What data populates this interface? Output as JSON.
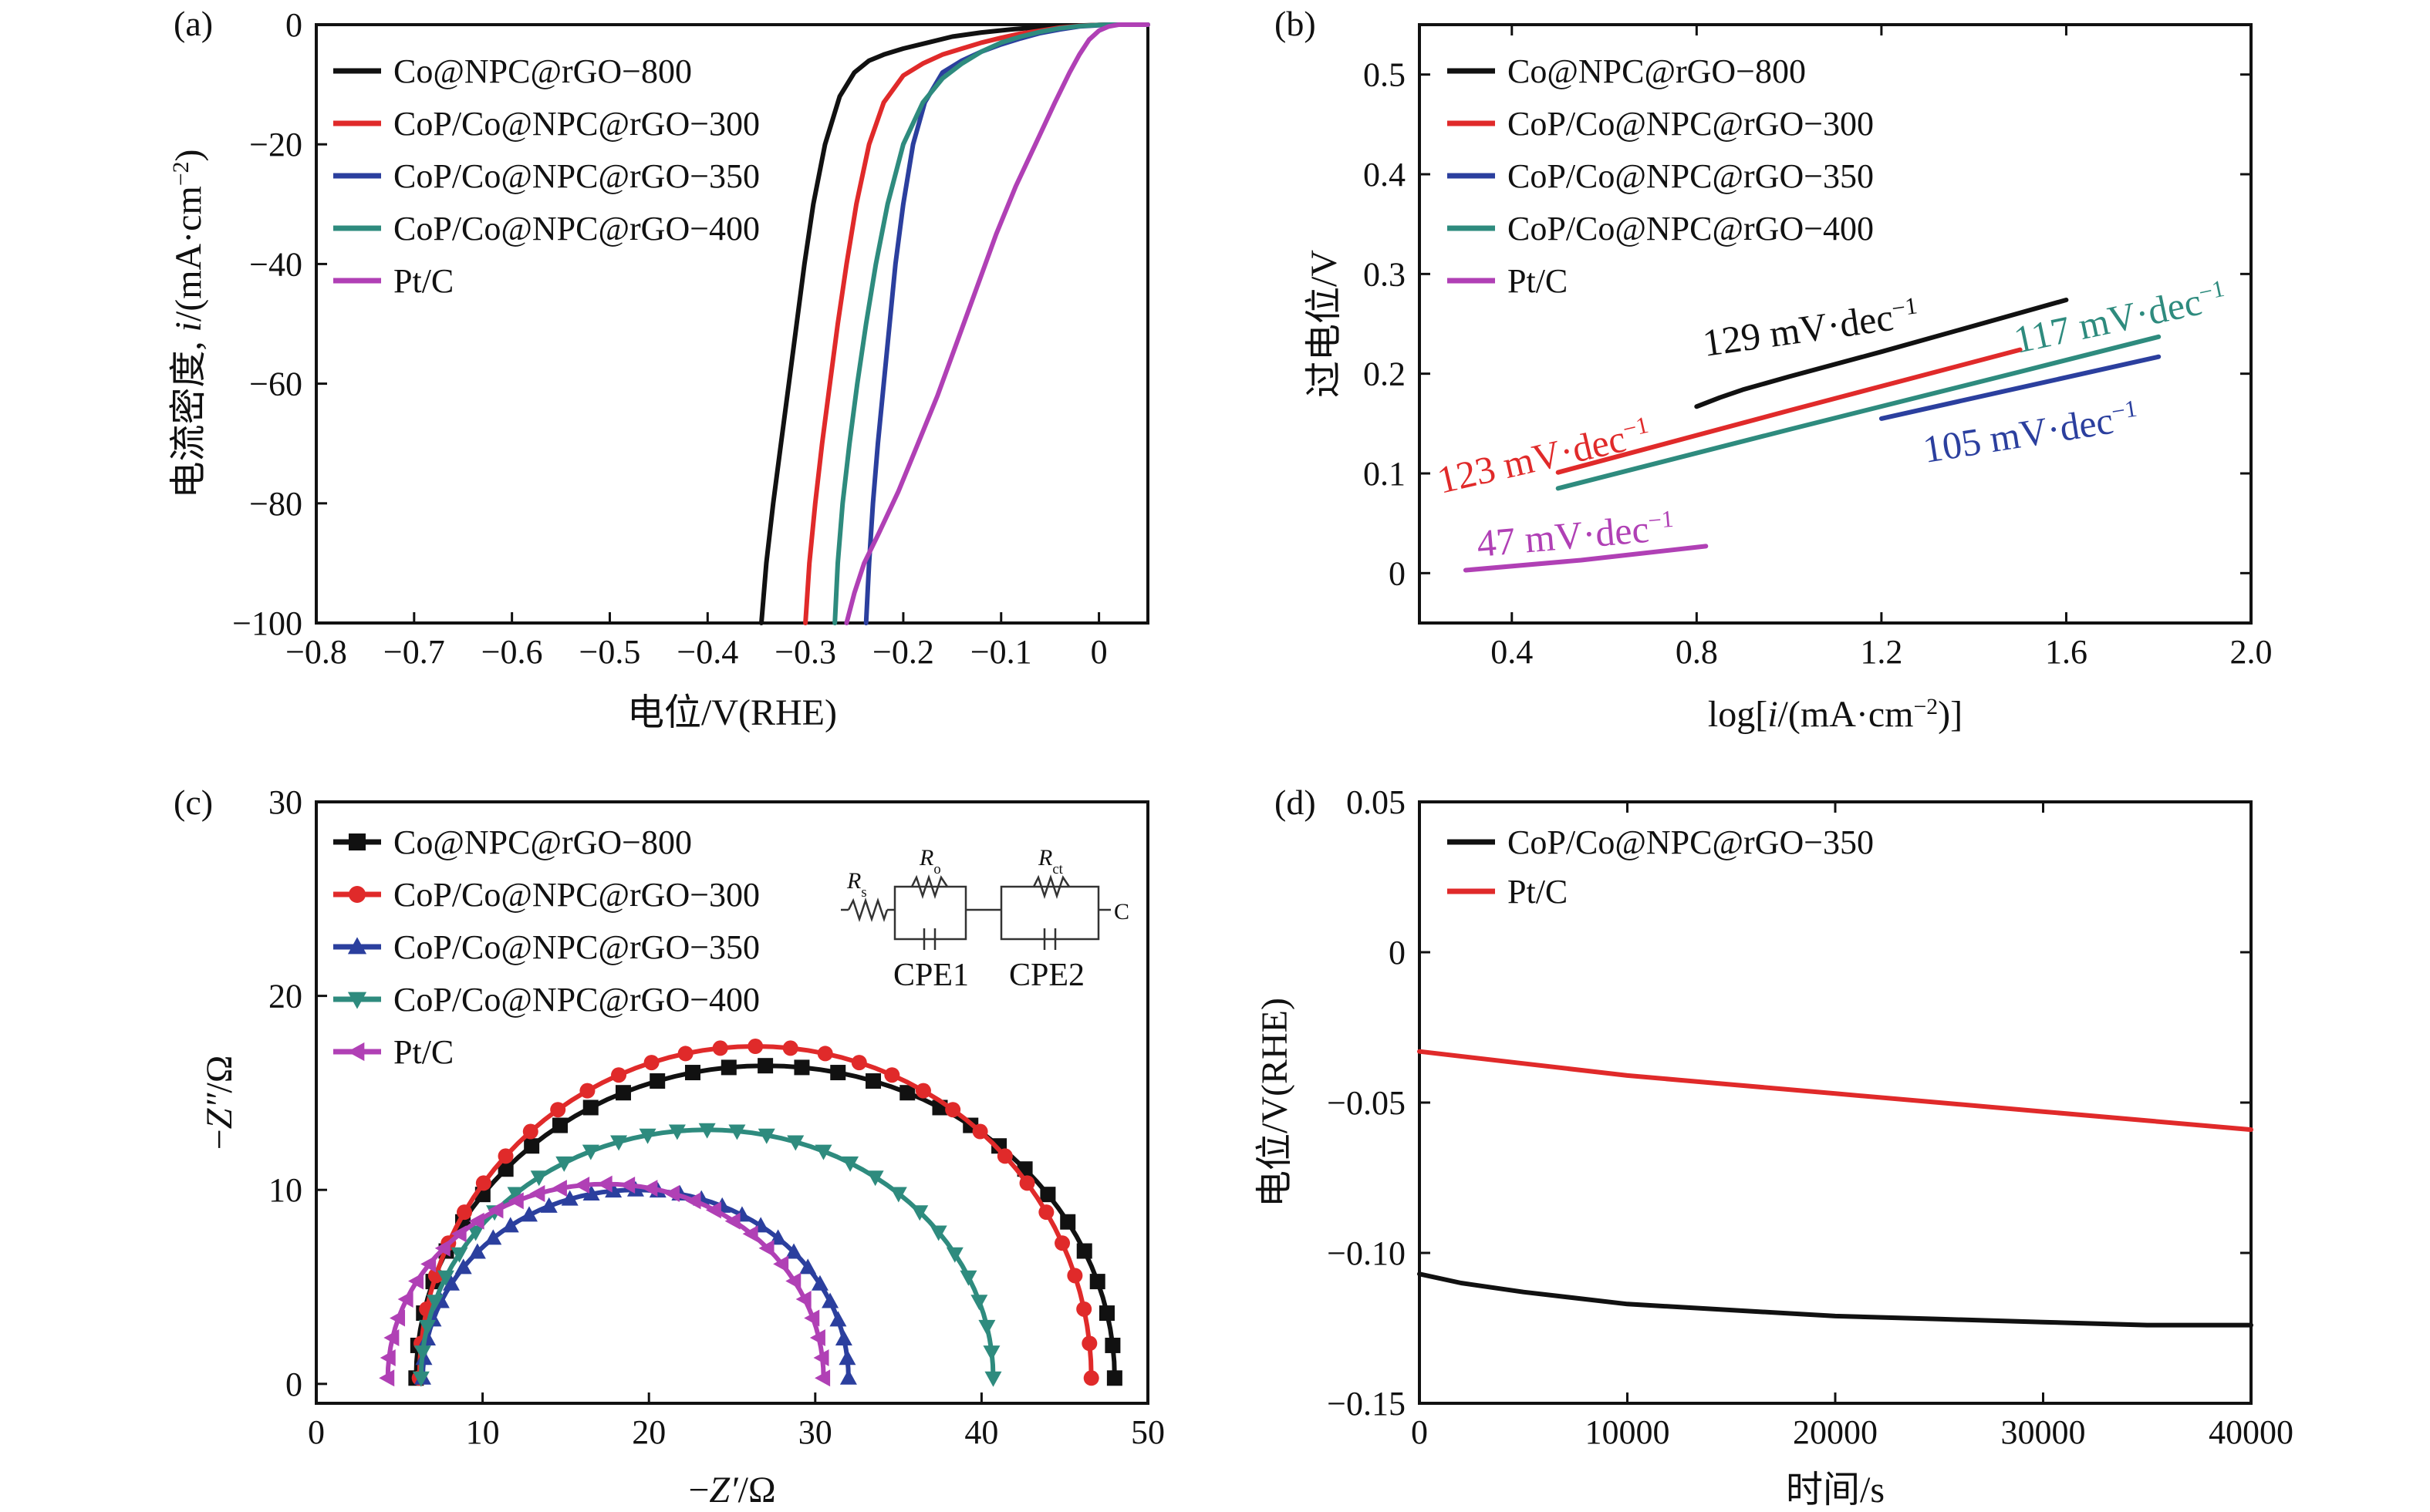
{
  "chart_data": [
    {
      "panel": "(a)",
      "type": "line",
      "xlabel": "电位/V(RHE)",
      "ylabel_prefix": "电流密度, ",
      "ylabel_var": "i",
      "ylabel_unit": "/(mA·cm",
      "ylabel_sup": "−2",
      "ylabel_end": ")",
      "xlim": [
        -0.8,
        0.05
      ],
      "ylim": [
        -100,
        0
      ],
      "xticks": [
        -0.8,
        -0.7,
        -0.6,
        -0.5,
        -0.4,
        -0.3,
        -0.2,
        -0.1,
        0
      ],
      "xtick_labels": [
        "−0.8",
        "−0.7",
        "−0.6",
        "−0.5",
        "−0.4",
        "−0.3",
        "−0.2",
        "−0.1",
        "0"
      ],
      "yticks": [
        0,
        -20,
        -40,
        -60,
        -80,
        -100
      ],
      "ytick_labels": [
        "0",
        "−20",
        "−40",
        "−60",
        "−80",
        "−100"
      ],
      "legend_position": "top-left",
      "series": [
        {
          "name": "Co@NPC@rGO−800",
          "color": "#111111",
          "x": [
            -0.345,
            -0.34,
            -0.333,
            -0.325,
            -0.317,
            -0.309,
            -0.301,
            -0.292,
            -0.28,
            -0.265,
            -0.25,
            -0.235,
            -0.22,
            -0.2,
            -0.175,
            -0.15,
            -0.12,
            -0.09,
            -0.06,
            -0.03,
            -0.01,
            0.0,
            0.01,
            0.02,
            0.05
          ],
          "y": [
            -100,
            -90,
            -80,
            -70,
            -60,
            -50,
            -40,
            -30,
            -20,
            -12,
            -8,
            -6,
            -5,
            -4,
            -3,
            -2,
            -1.3,
            -0.8,
            -0.4,
            -0.2,
            -0.1,
            -0.05,
            0,
            0,
            0
          ]
        },
        {
          "name": "CoP/Co@NPC@rGO−300",
          "color": "#e02a2a",
          "x": [
            -0.3,
            -0.296,
            -0.29,
            -0.283,
            -0.275,
            -0.267,
            -0.258,
            -0.248,
            -0.235,
            -0.22,
            -0.2,
            -0.18,
            -0.16,
            -0.14,
            -0.12,
            -0.1,
            -0.08,
            -0.06,
            -0.04,
            -0.02,
            0.0,
            0.01,
            0.05
          ],
          "y": [
            -100,
            -90,
            -80,
            -70,
            -60,
            -50,
            -40,
            -30,
            -20,
            -13,
            -8.5,
            -6.5,
            -5,
            -4,
            -3,
            -2.2,
            -1.5,
            -1,
            -0.5,
            -0.2,
            -0.05,
            0,
            0
          ]
        },
        {
          "name": "CoP/Co@NPC@rGO−350",
          "color": "#2b3f9e",
          "x": [
            -0.238,
            -0.235,
            -0.231,
            -0.226,
            -0.22,
            -0.214,
            -0.208,
            -0.2,
            -0.19,
            -0.178,
            -0.16,
            -0.14,
            -0.12,
            -0.1,
            -0.08,
            -0.06,
            -0.04,
            -0.02,
            0.0,
            0.01,
            0.05
          ],
          "y": [
            -100,
            -90,
            -80,
            -70,
            -60,
            -50,
            -40,
            -30,
            -20,
            -13,
            -8,
            -6,
            -4.5,
            -3.3,
            -2.3,
            -1.4,
            -0.8,
            -0.3,
            -0.1,
            0,
            0
          ]
        },
        {
          "name": "CoP/Co@NPC@rGO−400",
          "color": "#2e8b7e",
          "x": [
            -0.27,
            -0.267,
            -0.262,
            -0.255,
            -0.247,
            -0.238,
            -0.228,
            -0.216,
            -0.2,
            -0.18,
            -0.16,
            -0.14,
            -0.12,
            -0.1,
            -0.08,
            -0.06,
            -0.04,
            -0.02,
            0.0,
            0.01,
            0.05
          ],
          "y": [
            -100,
            -90,
            -80,
            -70,
            -60,
            -50,
            -40,
            -30,
            -20,
            -13,
            -9,
            -6.5,
            -4.5,
            -3,
            -2,
            -1.2,
            -0.6,
            -0.25,
            -0.05,
            0,
            0
          ]
        },
        {
          "name": "Pt/C",
          "color": "#b040b5",
          "x": [
            -0.258,
            -0.25,
            -0.24,
            -0.225,
            -0.205,
            -0.185,
            -0.165,
            -0.145,
            -0.125,
            -0.105,
            -0.085,
            -0.065,
            -0.045,
            -0.03,
            -0.02,
            -0.01,
            0.0,
            0.01,
            0.02,
            0.05
          ],
          "y": [
            -100,
            -95,
            -90,
            -85,
            -78,
            -70,
            -62,
            -53,
            -44,
            -35,
            -27,
            -20,
            -13,
            -8,
            -5,
            -2.5,
            -1,
            -0.3,
            0,
            0
          ]
        }
      ]
    },
    {
      "panel": "(b)",
      "type": "line",
      "xlabel_prefix": "log[",
      "xlabel_var": "i",
      "xlabel_unit": "/(mA·cm",
      "xlabel_sup": "−2",
      "xlabel_end": ")]",
      "ylabel": "过电位/V",
      "xlim": [
        0.2,
        2.0
      ],
      "ylim": [
        -0.05,
        0.55
      ],
      "xticks": [
        0.4,
        0.8,
        1.2,
        1.6,
        2.0
      ],
      "xtick_labels": [
        "0.4",
        "0.8",
        "1.2",
        "1.6",
        "2.0"
      ],
      "yticks": [
        0,
        0.1,
        0.2,
        0.3,
        0.4,
        0.5
      ],
      "ytick_labels": [
        "0",
        "0.1",
        "0.2",
        "0.3",
        "0.4",
        "0.5"
      ],
      "legend_position": "top-left",
      "series": [
        {
          "name": "Co@NPC@rGO−800",
          "color": "#111111",
          "x": [
            0.8,
            0.85,
            0.9,
            1.0,
            1.2,
            1.4,
            1.6
          ],
          "y": [
            0.167,
            0.176,
            0.184,
            0.197,
            0.222,
            0.248,
            0.274
          ],
          "slope_label": "129 mV·dec",
          "slope_sup": "−1"
        },
        {
          "name": "CoP/Co@NPC@rGO−300",
          "color": "#e02a2a",
          "x": [
            0.5,
            1.0,
            1.5
          ],
          "y": [
            0.101,
            0.163,
            0.224
          ],
          "slope_label": "123 mV·dec",
          "slope_sup": "−1"
        },
        {
          "name": "CoP/Co@NPC@rGO−350",
          "color": "#2b3f9e",
          "x": [
            1.2,
            1.5,
            1.8
          ],
          "y": [
            0.155,
            0.186,
            0.217
          ],
          "slope_label": "105 mV·dec",
          "slope_sup": "−1"
        },
        {
          "name": "CoP/Co@NPC@rGO−400",
          "color": "#2e8b7e",
          "x": [
            0.5,
            1.0,
            1.5,
            1.8
          ],
          "y": [
            0.085,
            0.144,
            0.202,
            0.237
          ],
          "slope_label": "117 mV·dec",
          "slope_sup": "−1"
        },
        {
          "name": "Pt/C",
          "color": "#b040b5",
          "x": [
            0.3,
            0.55,
            0.82
          ],
          "y": [
            0.003,
            0.013,
            0.027
          ],
          "slope_label": "47 mV·dec",
          "slope_sup": "−1"
        }
      ]
    },
    {
      "panel": "(c)",
      "type": "scatter",
      "xlabel_prefix": "−",
      "xlabel_var": "Z′",
      "xlabel_unit": "/Ω",
      "ylabel_prefix": "−",
      "ylabel_var": "Z″",
      "ylabel_unit": "/Ω",
      "xlim": [
        0,
        50
      ],
      "ylim": [
        -1,
        30
      ],
      "xticks": [
        0,
        10,
        20,
        30,
        40,
        50
      ],
      "xtick_labels": [
        "0",
        "10",
        "20",
        "30",
        "40",
        "50"
      ],
      "yticks": [
        0,
        10,
        20,
        30
      ],
      "ytick_labels": [
        "0",
        "10",
        "20",
        "30"
      ],
      "legend_position": "top-left",
      "circuit_labels": {
        "rs": "R",
        "rs_sub": "s",
        "ro": "R",
        "ro_sub": "o",
        "rct": "R",
        "rct_sub": "ct",
        "c_end": "C",
        "cpe1": "CPE1",
        "cpe2": "CPE2"
      },
      "series": [
        {
          "name": "Co@NPC@rGO−800",
          "color": "#111111",
          "marker": "square",
          "center": 27,
          "radius": 21,
          "height": 16.1
        },
        {
          "name": "CoP/Co@NPC@rGO−300",
          "color": "#e02a2a",
          "marker": "circle",
          "center": 26.4,
          "radius": 20.2,
          "height": 17.1
        },
        {
          "name": "CoP/Co@NPC@rGO−350",
          "color": "#2b3f9e",
          "marker": "triangle-up",
          "center": 19.2,
          "radius": 12.8,
          "height": 9.7
        },
        {
          "name": "CoP/Co@NPC@rGO−400",
          "color": "#2e8b7e",
          "marker": "triangle-down",
          "center": 23.5,
          "radius": 17.2,
          "height": 12.8
        },
        {
          "name": "Pt/C",
          "color": "#b040b5",
          "marker": "triangle-left",
          "center": 17.4,
          "radius": 13.1,
          "height": 10
        }
      ]
    },
    {
      "panel": "(d)",
      "type": "line",
      "xlabel": "时间/s",
      "ylabel": "电位/V(RHE)",
      "xlim": [
        0,
        40000
      ],
      "ylim": [
        -0.15,
        0.05
      ],
      "xticks": [
        0,
        10000,
        20000,
        30000,
        40000
      ],
      "xtick_labels": [
        "0",
        "10000",
        "20000",
        "30000",
        "40000"
      ],
      "yticks": [
        0.05,
        0,
        -0.05,
        -0.1,
        -0.15
      ],
      "ytick_labels": [
        "0.05",
        "0",
        "−0.05",
        "−0.10",
        "−0.15"
      ],
      "legend_position": "top-left",
      "series": [
        {
          "name": "CoP/Co@NPC@rGO−350",
          "color": "#111111",
          "x": [
            0,
            2000,
            5000,
            10000,
            15000,
            20000,
            25000,
            30000,
            35000,
            40000
          ],
          "y": [
            -0.107,
            -0.11,
            -0.113,
            -0.117,
            -0.119,
            -0.121,
            -0.122,
            -0.123,
            -0.124,
            -0.124
          ]
        },
        {
          "name": "Pt/C",
          "color": "#e02a2a",
          "x": [
            0,
            5000,
            10000,
            15000,
            20000,
            25000,
            30000,
            35000,
            40000
          ],
          "y": [
            -0.033,
            -0.037,
            -0.041,
            -0.044,
            -0.047,
            -0.05,
            -0.053,
            -0.056,
            -0.059
          ]
        }
      ]
    }
  ]
}
